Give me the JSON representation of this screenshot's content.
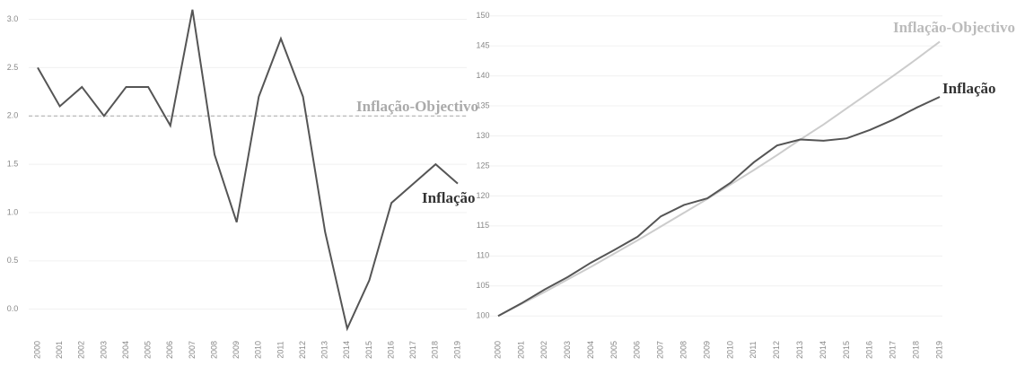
{
  "chart_data": [
    {
      "type": "line",
      "categories": [
        "2000",
        "2001",
        "2002",
        "2003",
        "2004",
        "2005",
        "2006",
        "2007",
        "2008",
        "2009",
        "2010",
        "2011",
        "2012",
        "2013",
        "2014",
        "2015",
        "2016",
        "2017",
        "2018",
        "2019"
      ],
      "series": [
        {
          "name": "Inflação",
          "color": "#555555",
          "values": [
            2.5,
            2.1,
            2.3,
            2.0,
            2.3,
            2.3,
            1.9,
            3.1,
            1.6,
            0.9,
            2.2,
            2.8,
            2.2,
            0.8,
            -0.2,
            0.3,
            1.1,
            1.3,
            1.5,
            1.3
          ]
        }
      ],
      "reference_line": {
        "name": "Inflação-Objectivo",
        "value": 2,
        "color": "#aaaaaa"
      },
      "ylim": [
        -0.3,
        3.2
      ],
      "yticks": [
        {
          "value": 0,
          "label": "0.0"
        },
        0.5,
        {
          "value": 1,
          "label": "1.0"
        },
        1.5,
        {
          "value": 2,
          "label": "2.0"
        },
        2.5,
        {
          "value": 3,
          "label": "3.0"
        }
      ],
      "grid": true
    },
    {
      "type": "line",
      "categories": [
        "2000",
        "2001",
        "2002",
        "2003",
        "2004",
        "2005",
        "2006",
        "2007",
        "2008",
        "2009",
        "2010",
        "2011",
        "2012",
        "2013",
        "2014",
        "2015",
        "2016",
        "2017",
        "2018",
        "2019"
      ],
      "series": [
        {
          "name": "Inflação-Objectivo",
          "color": "#cccccc",
          "values": [
            100,
            102,
            104,
            106.1,
            108.2,
            110.4,
            112.6,
            114.9,
            117.2,
            119.5,
            121.9,
            124.3,
            126.8,
            129.4,
            131.9,
            134.6,
            137.3,
            140,
            142.8,
            145.7
          ]
        },
        {
          "name": "Inflação",
          "color": "#555555",
          "values": [
            100,
            102.1,
            104.4,
            106.5,
            108.9,
            111,
            113.2,
            116.6,
            118.5,
            119.6,
            122.2,
            125.6,
            128.4,
            129.4,
            129.2,
            129.6,
            131,
            132.7,
            134.7,
            136.5
          ]
        }
      ],
      "ylim": [
        96,
        151
      ],
      "yticks": [
        100,
        105,
        110,
        115,
        120,
        125,
        130,
        135,
        140,
        145,
        150
      ],
      "grid": true
    }
  ]
}
